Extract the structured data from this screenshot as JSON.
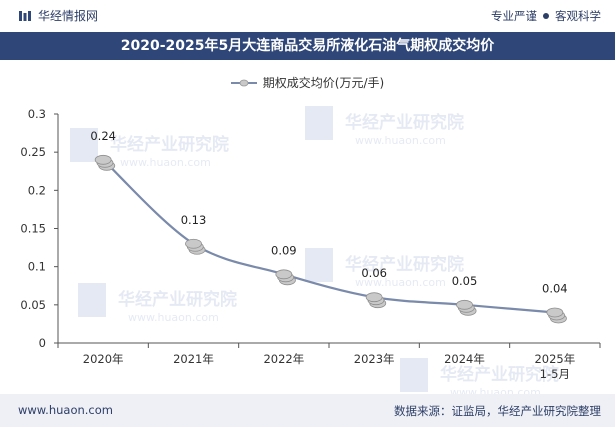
{
  "header": {
    "brand": "华经情报网",
    "tagline_left": "专业严谨",
    "tagline_right": "客观科学"
  },
  "watermark_text": "华经产业研究院",
  "watermark_url": "www.huaon.com",
  "footer": {
    "site": "www.huaon.com",
    "source": "数据来源：证监局，华经产业研究院整理"
  },
  "colors": {
    "title_band": "#2e4678",
    "line": "#7a8aaa",
    "marker": "#c9c9c9"
  },
  "chart_data": {
    "type": "line",
    "title": "2020-2025年5月大连商品交易所液化石油气期权成交均价",
    "xlabel": "",
    "ylabel": "",
    "categories": [
      "2020年",
      "2021年",
      "2022年",
      "2023年",
      "2024年",
      "2025年\n1-5月"
    ],
    "series": [
      {
        "name": "期权成交均价(万元/手)",
        "values": [
          0.24,
          0.13,
          0.09,
          0.06,
          0.05,
          0.04
        ],
        "labels": [
          "0.24",
          "0.13",
          "0.09",
          "0.06",
          "0.05",
          "0.04"
        ]
      }
    ],
    "ylim": [
      0,
      0.3
    ],
    "yticks": [
      0,
      0.05,
      0.1,
      0.15,
      0.2,
      0.25,
      0.3
    ],
    "ytick_labels": [
      "0",
      "0.05",
      "0.1",
      "0.15",
      "0.2",
      "0.25",
      "0.3"
    ],
    "grid": false,
    "legend_position": "top-center"
  }
}
